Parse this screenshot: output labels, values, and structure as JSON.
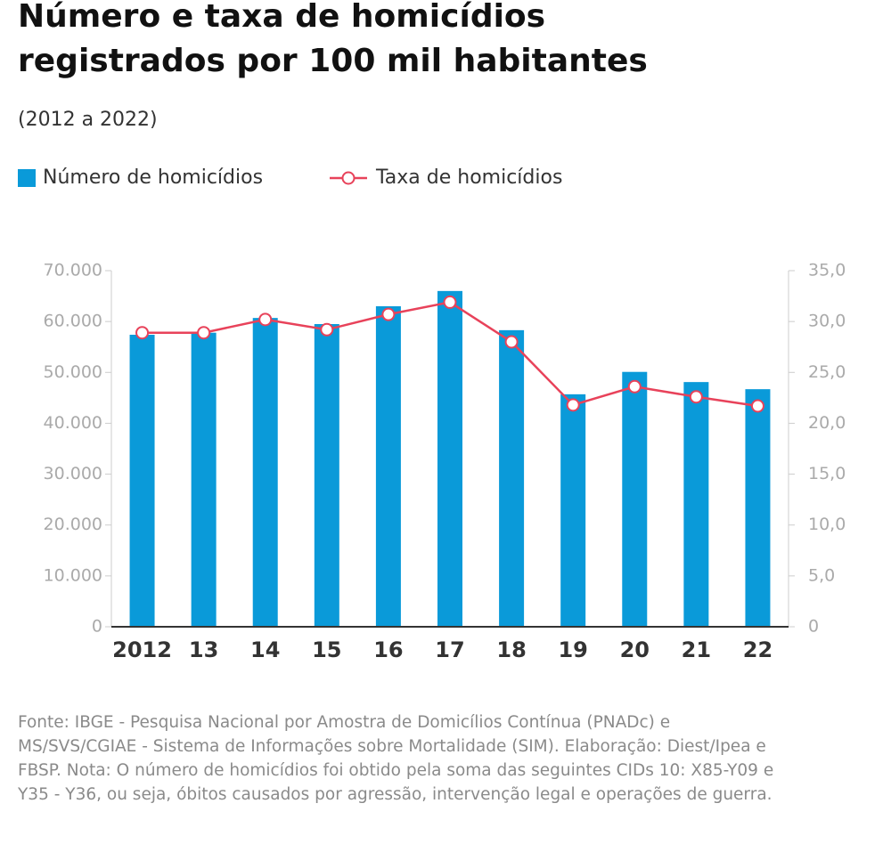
{
  "chart_data": {
    "type": "bar_line",
    "title": "Número e taxa de homicídios registrados por 100 mil habitantes",
    "subtitle": "(2012 a 2022)",
    "categories": [
      "2012",
      "13",
      "14",
      "15",
      "16",
      "17",
      "18",
      "19",
      "20",
      "21",
      "22"
    ],
    "series": [
      {
        "name": "Número de homicídios",
        "type": "bar",
        "color": "#0a9ad9",
        "values": [
          57400,
          57800,
          60700,
          59500,
          63000,
          66000,
          58300,
          45700,
          50100,
          48100,
          46700
        ]
      },
      {
        "name": "Taxa de homicídios",
        "type": "line",
        "axis": "y2",
        "color": "#e8425a",
        "values": [
          28.9,
          28.9,
          30.2,
          29.2,
          30.7,
          31.9,
          28.0,
          21.8,
          23.6,
          22.6,
          21.7
        ]
      }
    ],
    "ylim": [
      0,
      70000
    ],
    "yticks": [
      0,
      {
        "value": 10000,
        "label": "10.000"
      },
      {
        "value": 20000,
        "label": "20.000"
      },
      {
        "value": 30000,
        "label": "30.000"
      },
      {
        "value": 40000,
        "label": "40.000"
      },
      {
        "value": 50000,
        "label": "50.000"
      },
      {
        "value": 60000,
        "label": "60.000"
      },
      {
        "value": 70000,
        "label": "70.000"
      }
    ],
    "y2lim": [
      0,
      35
    ],
    "y2ticks": [
      0,
      {
        "value": 5,
        "label": "5,0"
      },
      {
        "value": 10,
        "label": "10,0"
      },
      {
        "value": 15,
        "label": "15,0"
      },
      {
        "value": 20,
        "label": "20,0"
      },
      {
        "value": 25,
        "label": "25,0"
      },
      {
        "value": 30,
        "label": "30,0"
      },
      {
        "value": 35,
        "label": "35,0"
      }
    ],
    "source": "Fonte: IBGE - Pesquisa Nacional por Amostra de Domicílios Contínua (PNADc) e MS/SVS/CGIAE - Sistema de Informações sobre Mortalidade (SIM). Elaboração: Diest/Ipea e FBSP. Nota: O número de homicídios foi obtido pela soma das seguintes CIDs 10: X85-Y09 e Y35 - Y36, ou seja, óbitos causados por agressão, intervenção legal e operações de guerra."
  }
}
